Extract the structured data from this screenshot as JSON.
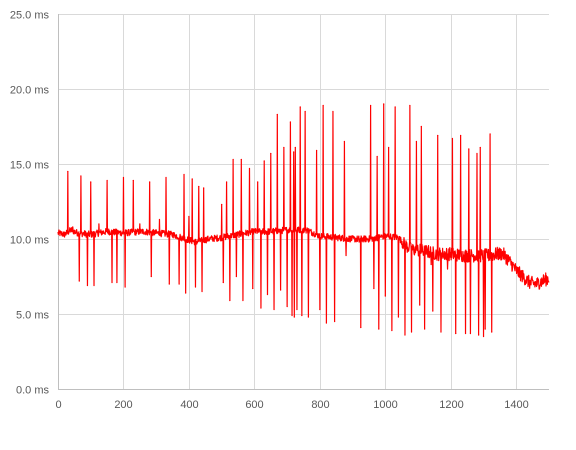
{
  "chart_data": {
    "type": "line",
    "title": "",
    "xlabel": "",
    "ylabel": "",
    "grid": {
      "horizontal": true,
      "vertical": true
    },
    "legend": "none",
    "xlim": [
      0,
      1500
    ],
    "ylim": [
      0,
      25
    ],
    "x_ticks": [
      0,
      200,
      400,
      600,
      800,
      1000,
      1200,
      1400
    ],
    "x_tick_labels": [
      "0",
      "200",
      "400",
      "600",
      "800",
      "1000",
      "1200",
      "1400"
    ],
    "y_ticks": [
      0,
      5,
      10,
      15,
      20,
      25
    ],
    "y_tick_labels": [
      "0.0 ms",
      "5.0 ms",
      "10.0 ms",
      "15.0 ms",
      "20.0 ms",
      "25.0 ms"
    ],
    "series": [
      {
        "color": "#ff0000",
        "baseline": [
          [
            0,
            10.4
          ],
          [
            20,
            10.3
          ],
          [
            40,
            10.6
          ],
          [
            60,
            10.4
          ],
          [
            100,
            10.3
          ],
          [
            150,
            10.5
          ],
          [
            200,
            10.4
          ],
          [
            260,
            10.5
          ],
          [
            300,
            10.4
          ],
          [
            350,
            10.3
          ],
          [
            390,
            10.0
          ],
          [
            420,
            9.8
          ],
          [
            460,
            10.0
          ],
          [
            500,
            10.1
          ],
          [
            550,
            10.3
          ],
          [
            600,
            10.5
          ],
          [
            650,
            10.5
          ],
          [
            700,
            10.6
          ],
          [
            760,
            10.6
          ],
          [
            800,
            10.2
          ],
          [
            850,
            10.1
          ],
          [
            900,
            10.0
          ],
          [
            950,
            10.0
          ],
          [
            1000,
            10.2
          ],
          [
            1040,
            10.1
          ],
          [
            1060,
            9.6
          ],
          [
            1080,
            9.3
          ],
          [
            1120,
            9.2
          ],
          [
            1160,
            9.0
          ],
          [
            1200,
            9.0
          ],
          [
            1240,
            8.9
          ],
          [
            1280,
            8.9
          ],
          [
            1320,
            8.9
          ],
          [
            1340,
            9.0
          ],
          [
            1360,
            9.0
          ],
          [
            1380,
            8.5
          ],
          [
            1400,
            7.9
          ],
          [
            1420,
            7.5
          ],
          [
            1440,
            7.1
          ],
          [
            1460,
            7.0
          ],
          [
            1480,
            7.2
          ],
          [
            1500,
            7.4
          ]
        ],
        "spikes": [
          [
            30,
            14.5
          ],
          [
            45,
            10.8
          ],
          [
            65,
            7.2
          ],
          [
            70,
            14.2
          ],
          [
            90,
            6.9
          ],
          [
            100,
            13.8
          ],
          [
            110,
            6.9
          ],
          [
            125,
            11.0
          ],
          [
            150,
            13.9
          ],
          [
            165,
            7.1
          ],
          [
            180,
            7.1
          ],
          [
            200,
            14.1
          ],
          [
            205,
            6.8
          ],
          [
            230,
            13.9
          ],
          [
            250,
            11.0
          ],
          [
            280,
            13.8
          ],
          [
            285,
            7.5
          ],
          [
            310,
            11.3
          ],
          [
            330,
            14.1
          ],
          [
            340,
            7.0
          ],
          [
            370,
            7.0
          ],
          [
            385,
            14.3
          ],
          [
            390,
            6.4
          ],
          [
            400,
            11.5
          ],
          [
            410,
            14.0
          ],
          [
            420,
            6.8
          ],
          [
            430,
            13.5
          ],
          [
            440,
            6.5
          ],
          [
            445,
            13.4
          ],
          [
            500,
            12.3
          ],
          [
            505,
            7.1
          ],
          [
            515,
            13.8
          ],
          [
            525,
            5.9
          ],
          [
            535,
            15.3
          ],
          [
            545,
            7.5
          ],
          [
            560,
            15.3
          ],
          [
            565,
            5.9
          ],
          [
            585,
            14.7
          ],
          [
            595,
            6.7
          ],
          [
            610,
            13.8
          ],
          [
            620,
            5.4
          ],
          [
            630,
            15.2
          ],
          [
            640,
            6.3
          ],
          [
            650,
            15.7
          ],
          [
            660,
            5.3
          ],
          [
            670,
            18.3
          ],
          [
            680,
            6.6
          ],
          [
            690,
            16.1
          ],
          [
            700,
            5.5
          ],
          [
            710,
            17.8
          ],
          [
            715,
            4.9
          ],
          [
            720,
            15.8
          ],
          [
            722,
            4.8
          ],
          [
            725,
            16.1
          ],
          [
            730,
            5.3
          ],
          [
            740,
            18.8
          ],
          [
            745,
            4.9
          ],
          [
            755,
            18.5
          ],
          [
            765,
            4.8
          ],
          [
            790,
            15.9
          ],
          [
            800,
            5.3
          ],
          [
            810,
            18.9
          ],
          [
            820,
            4.4
          ],
          [
            840,
            18.5
          ],
          [
            845,
            4.5
          ],
          [
            875,
            16.5
          ],
          [
            880,
            8.9
          ],
          [
            920,
            9.8
          ],
          [
            925,
            4.1
          ],
          [
            955,
            18.9
          ],
          [
            965,
            6.7
          ],
          [
            975,
            15.5
          ],
          [
            980,
            4.0
          ],
          [
            995,
            19.0
          ],
          [
            1000,
            6.2
          ],
          [
            1010,
            16.1
          ],
          [
            1020,
            3.9
          ],
          [
            1030,
            18.8
          ],
          [
            1040,
            4.8
          ],
          [
            1060,
            3.6
          ],
          [
            1075,
            18.9
          ],
          [
            1080,
            3.8
          ],
          [
            1095,
            16.5
          ],
          [
            1105,
            5.6
          ],
          [
            1110,
            17.5
          ],
          [
            1120,
            4.0
          ],
          [
            1140,
            8.3
          ],
          [
            1145,
            5.2
          ],
          [
            1160,
            16.9
          ],
          [
            1170,
            3.8
          ],
          [
            1190,
            8.0
          ],
          [
            1205,
            16.7
          ],
          [
            1215,
            3.7
          ],
          [
            1230,
            16.9
          ],
          [
            1245,
            3.7
          ],
          [
            1255,
            16.0
          ],
          [
            1260,
            3.7
          ],
          [
            1280,
            15.7
          ],
          [
            1285,
            3.6
          ],
          [
            1290,
            16.1
          ],
          [
            1300,
            3.5
          ],
          [
            1305,
            4.0
          ],
          [
            1320,
            17.0
          ],
          [
            1325,
            3.8
          ]
        ]
      }
    ]
  }
}
